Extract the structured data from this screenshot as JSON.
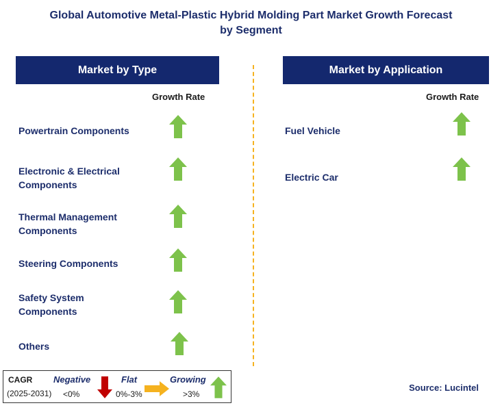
{
  "title": {
    "line1": "Global Automotive Metal-Plastic Hybrid Molding Part Market Growth Forecast",
    "line2": "by Segment"
  },
  "left_panel": {
    "header": "Market by Type",
    "growth_label": "Growth Rate",
    "items": [
      {
        "line1": "Powertrain Components",
        "line2": "",
        "trend": "growing"
      },
      {
        "line1": "Electronic & Electrical",
        "line2": "Components",
        "trend": "growing"
      },
      {
        "line1": "Thermal Management",
        "line2": "Components",
        "trend": "growing"
      },
      {
        "line1": "Steering Components",
        "line2": "",
        "trend": "growing"
      },
      {
        "line1": "Safety System",
        "line2": "Components",
        "trend": "growing"
      },
      {
        "line1": "Others",
        "line2": "",
        "trend": "growing"
      }
    ]
  },
  "right_panel": {
    "header": "Market by Application",
    "growth_label": "Growth Rate",
    "items": [
      {
        "line1": "Fuel Vehicle",
        "trend": "growing"
      },
      {
        "line1": "Electric Car",
        "trend": "growing"
      }
    ]
  },
  "legend": {
    "cagr": "CAGR",
    "years": "(2025-2031)",
    "negative": {
      "label": "Negative",
      "range": "<0%",
      "icon": "red-down-arrow-icon"
    },
    "flat": {
      "label": "Flat",
      "range": "0%-3%",
      "icon": "yellow-right-arrow-icon"
    },
    "growing": {
      "label": "Growing",
      "range": ">3%",
      "icon": "green-up-arrow-icon"
    }
  },
  "source": "Source: Lucintel",
  "colors": {
    "header_bg": "#14286e",
    "growing": "#7dc24b",
    "negative": "#c00000",
    "flat": "#f5b21f",
    "divider": "#f5b21f"
  }
}
